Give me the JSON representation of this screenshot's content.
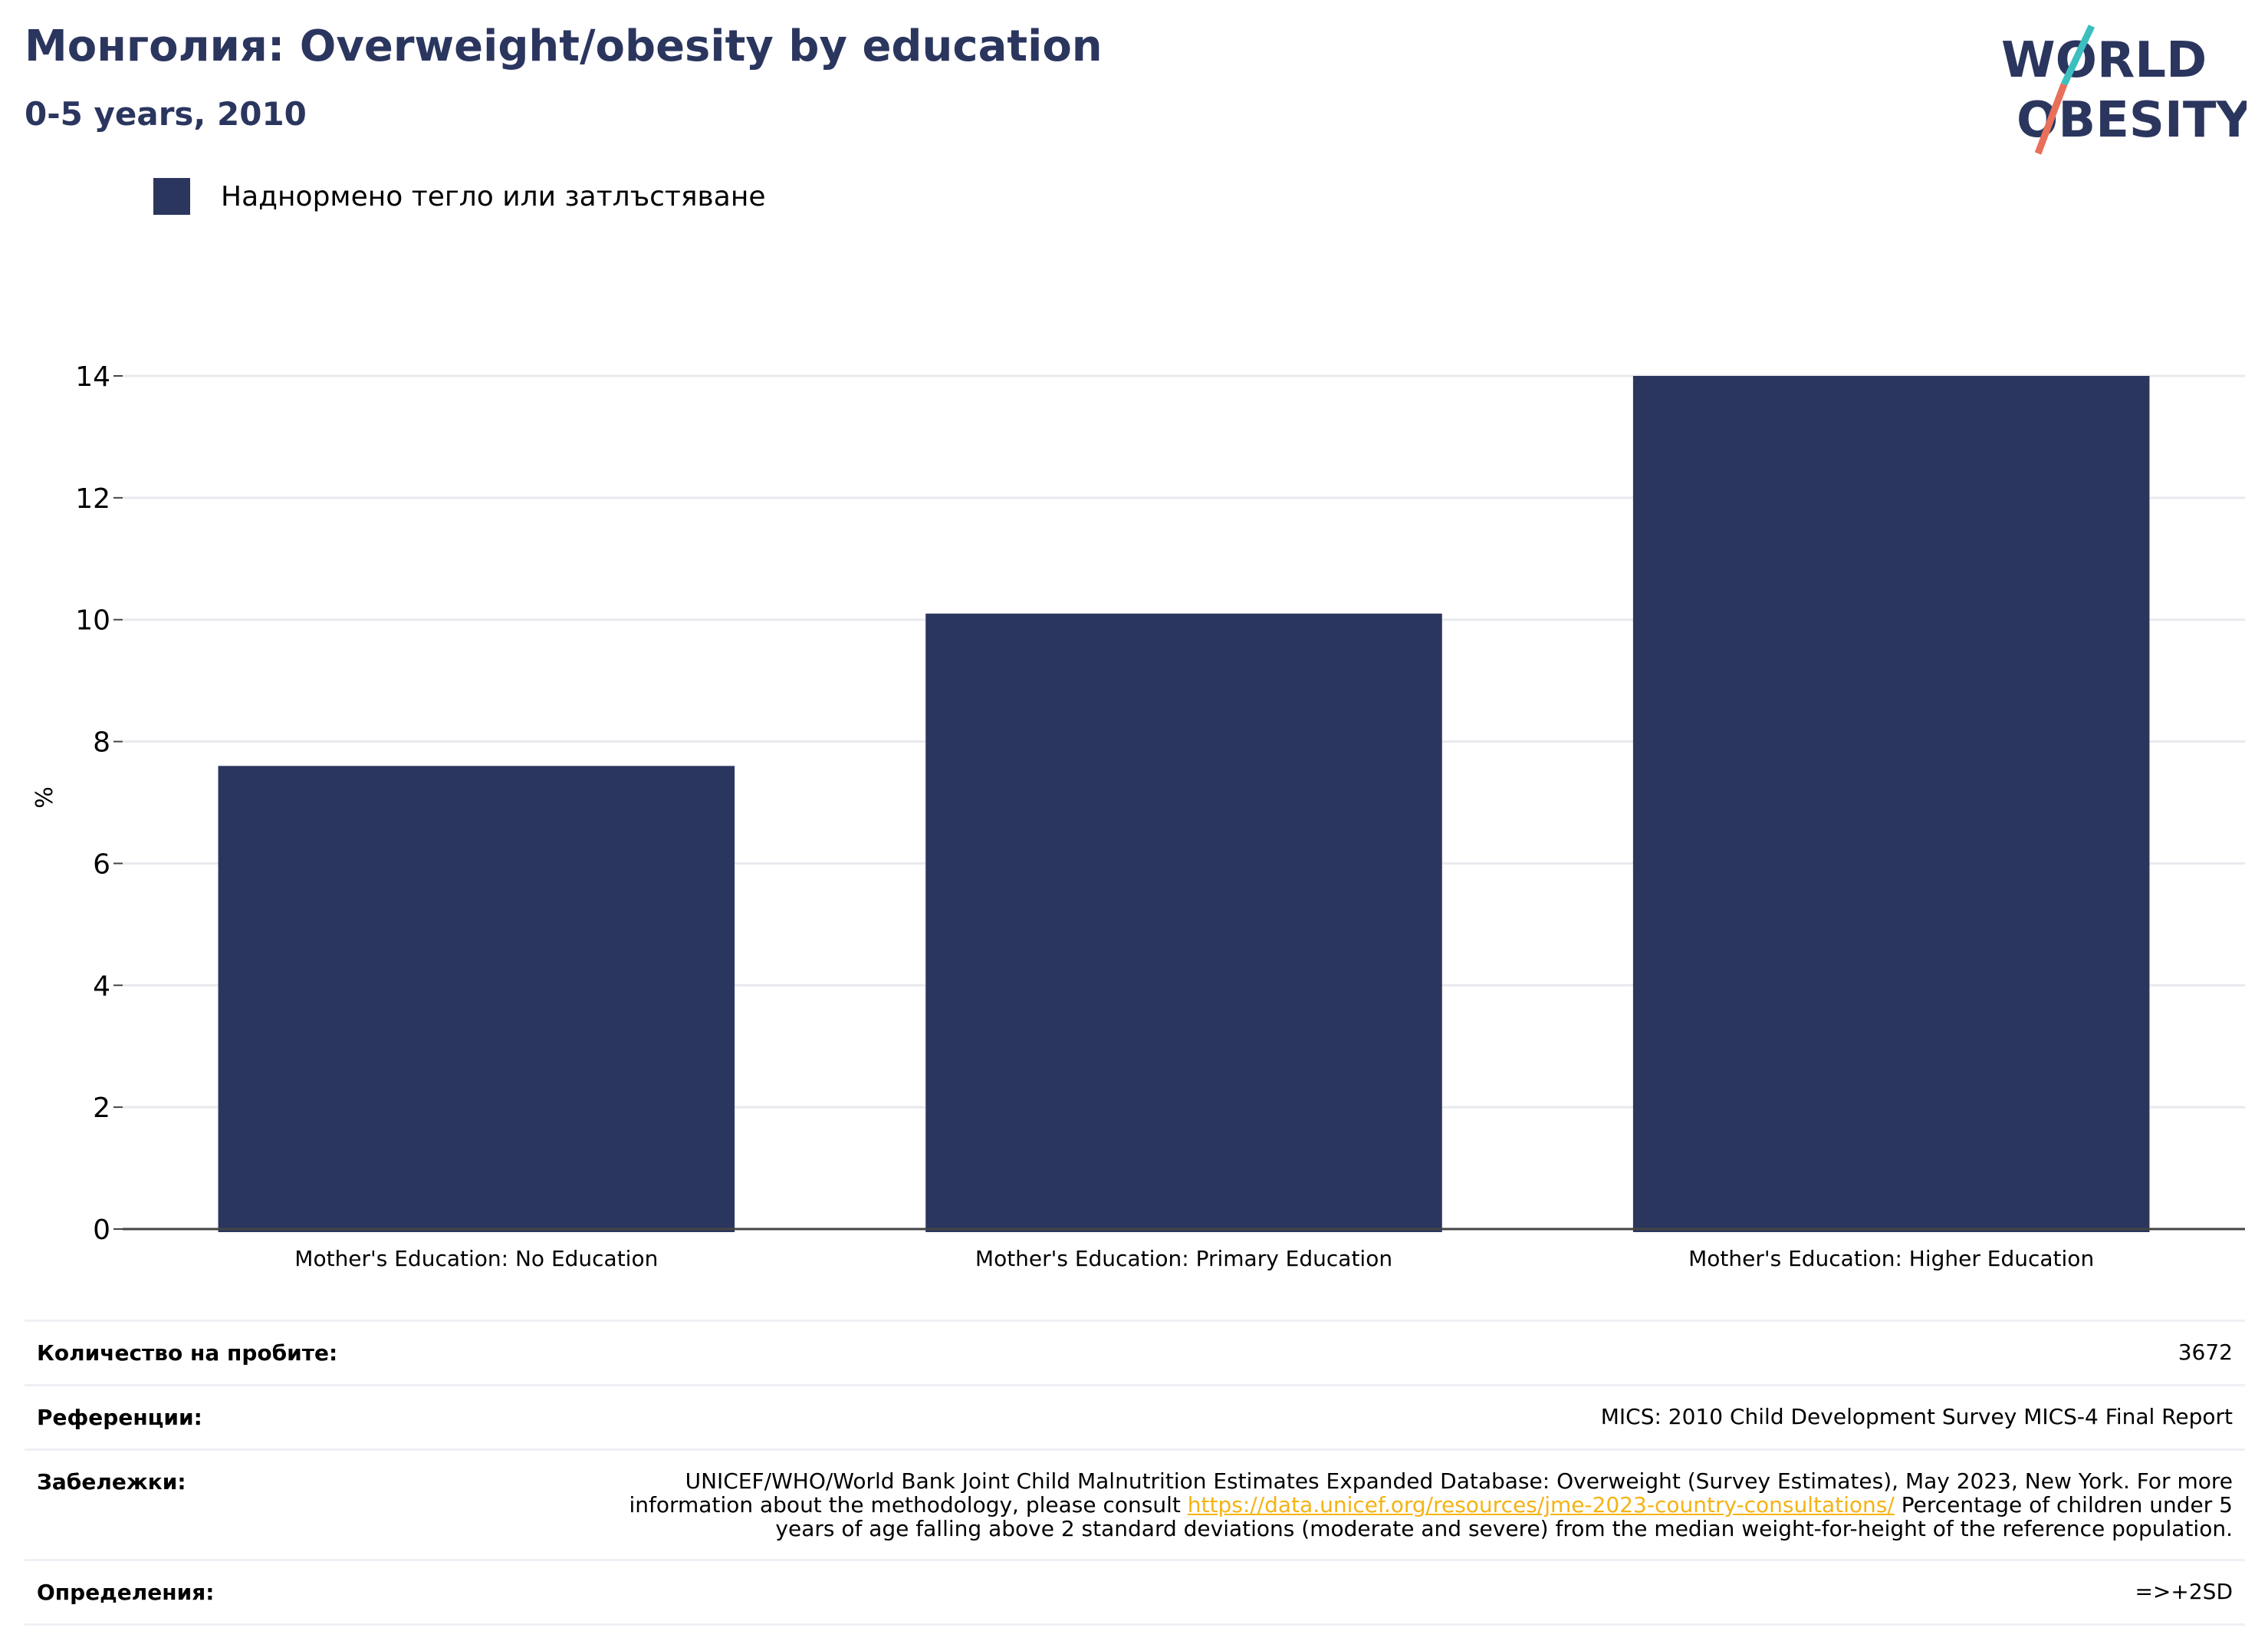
{
  "header": {
    "title": "Монголия: Overweight/obesity by education",
    "subtitle": "0-5 years, 2010"
  },
  "logo": {
    "line1": "WORLD",
    "line2": "OBESITY"
  },
  "legend": {
    "label": "Наднормено тегло или затлъстяване",
    "color": "#2b365f"
  },
  "chart_data": {
    "type": "bar",
    "categories": [
      "Mother's Education: No Education",
      "Mother's Education: Primary Education",
      "Mother's Education: Higher Education"
    ],
    "series": [
      {
        "name": "Наднормено тегло или затлъстяване",
        "values": [
          7.6,
          10.1,
          14.0
        ],
        "color": "#2b365f"
      }
    ],
    "ylabel": "%",
    "ylim": [
      0,
      14
    ],
    "yticks": [
      0,
      2,
      4,
      6,
      8,
      10,
      12,
      14
    ],
    "grid": true
  },
  "table": {
    "rows": [
      {
        "key": "Количество на пробите:",
        "value": "3672"
      },
      {
        "key": "Референции:",
        "value": "MICS: 2010 Child Development Survey MICS-4 Final Report"
      },
      {
        "key": "Забележки:",
        "value_pre": "UNICEF/WHO/World Bank Joint Child Malnutrition Estimates Expanded Database: Overweight (Survey Estimates), May 2023, New York. For more information about the methodology, please consult ",
        "link": "https://data.unicef.org/resources/jme-2023-country-consultations/",
        "value_post": " Percentage of children under 5 years of age falling above 2 standard deviations (moderate and severe) from the median weight-for-height of the reference population."
      },
      {
        "key": "Определения:",
        "value": "=>+2SD"
      }
    ]
  }
}
